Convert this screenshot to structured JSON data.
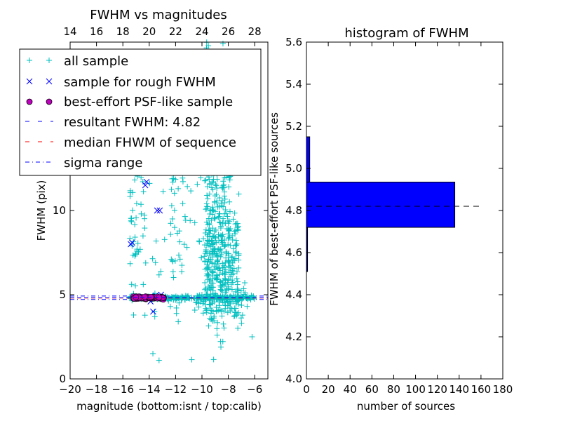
{
  "chart_data": [
    {
      "type": "scatter",
      "title": "FWHM vs magnitudes",
      "xlabel": "magnitude (bottom:isnt / top:calib)",
      "ylabel": "FWHM (pix)",
      "xlim": [
        -20,
        -5
      ],
      "ylim": [
        0,
        20
      ],
      "x_ticks": [
        -20,
        -18,
        -16,
        -14,
        -12,
        -10,
        -8,
        -6
      ],
      "x_tick_labels": [
        "−20",
        "−18",
        "−16",
        "−14",
        "−12",
        "−10",
        "−8",
        "−6"
      ],
      "y_ticks": [
        0,
        5,
        10
      ],
      "y_tick_labels": [
        "0",
        "5",
        "10"
      ],
      "top_axis": {
        "ticks": [
          14,
          16,
          18,
          20,
          22,
          24,
          26,
          28
        ],
        "tick_labels": [
          "14",
          "16",
          "18",
          "20",
          "22",
          "24",
          "26",
          "28"
        ],
        "calib_offset": 34
      },
      "grid": false,
      "legend": {
        "placement": "upper-left",
        "entries": [
          {
            "label": "all sample",
            "marker": "+",
            "color": "#00bfbf"
          },
          {
            "label": "sample for rough FWHM",
            "marker": "x",
            "color": "#0000ff"
          },
          {
            "label": "best-effort PSF-like sample",
            "marker": "o",
            "color": "#bf00bf"
          },
          {
            "label": "resultant FWHM: 4.82",
            "linestyle": "dashed",
            "color": "#0000ff"
          },
          {
            "label": "median FHWM of sequence",
            "linestyle": "dashed",
            "color": "#ff0000"
          },
          {
            "label": "sigma range",
            "linestyle": "dashdot",
            "color": "#0000ff"
          }
        ]
      },
      "hlines": {
        "resultant": 4.82,
        "median": 4.8,
        "sigma_low": 4.72,
        "sigma_high": 4.92
      },
      "series": [
        {
          "name": "all sample",
          "marker": "+",
          "color": "#00bfbf",
          "clusters": [
            {
              "x_range": [
                -15.5,
                -6.0
              ],
              "y_mean": 4.82,
              "y_spread": 0.06,
              "count": 260
            },
            {
              "x_range": [
                -10.5,
                -6.5
              ],
              "y_mean": 4.5,
              "y_spread": 0.5,
              "count": 70
            },
            {
              "x_range": [
                -9.8,
                -7.2
              ],
              "y_mean": 7.0,
              "y_spread": 1.9,
              "count": 300
            },
            {
              "x_range": [
                -9.8,
                -7.8
              ],
              "y_mean": 13.5,
              "y_spread": 3.2,
              "count": 240
            },
            {
              "x_range": [
                -12.5,
                -8.5
              ],
              "y_mean": 10.5,
              "y_spread": 3.5,
              "count": 110
            },
            {
              "x_range": [
                -15.5,
                -12.0
              ],
              "y_mean": 11.0,
              "y_spread": 4.5,
              "count": 70
            },
            {
              "x_range": [
                -15.5,
                -14.9
              ],
              "y_mean": 7.5,
              "y_spread": 1.5,
              "count": 20
            }
          ],
          "points": [
            [
              -6.2,
              2.5
            ],
            [
              -13.6,
              4.0
            ],
            [
              -11.8,
              3.4
            ],
            [
              -12.4,
              4.3
            ],
            [
              -7.0,
              3.3
            ]
          ]
        },
        {
          "name": "sample for rough FWHM",
          "marker": "x",
          "color": "#0000ff",
          "points": [
            [
              -15.3,
              8.1
            ],
            [
              -15.4,
              8.0
            ],
            [
              -14.2,
              11.7
            ],
            [
              -14.3,
              11.5
            ],
            [
              -13.4,
              10.0
            ],
            [
              -13.2,
              10.0
            ],
            [
              -13.7,
              4.0
            ],
            [
              -13.1,
              5.0
            ],
            [
              -14.5,
              4.9
            ],
            [
              -14.0,
              4.75
            ],
            [
              -13.3,
              4.85
            ],
            [
              -14.8,
              4.85
            ],
            [
              -13.9,
              4.6
            ],
            [
              -13.5,
              4.95
            ]
          ]
        },
        {
          "name": "best-effort PSF-like sample",
          "marker": "o",
          "color": "#bf00bf",
          "x_range": [
            -15.2,
            -12.8
          ],
          "y_mean": 4.82,
          "y_spread": 0.04,
          "count": 90
        }
      ]
    },
    {
      "type": "bar",
      "orientation": "horizontal",
      "title": "histogram of FWHM",
      "xlabel": "number of sources",
      "ylabel": "FWHM of best-effort PSF-like sources",
      "xlim": [
        0,
        180
      ],
      "ylim": [
        4.0,
        5.6
      ],
      "x_ticks": [
        0,
        20,
        40,
        60,
        80,
        100,
        120,
        140,
        160,
        180
      ],
      "y_ticks": [
        4.0,
        4.2,
        4.4,
        4.6,
        4.8,
        5.0,
        5.2,
        5.4,
        5.6
      ],
      "y_tick_labels": [
        "4.0",
        "4.2",
        "4.4",
        "4.6",
        "4.8",
        "5.0",
        "5.2",
        "5.4",
        "5.6"
      ],
      "bar_color": "#0000ff",
      "bins": [
        {
          "y0": 4.51,
          "y1": 4.72,
          "count": 1
        },
        {
          "y0": 4.72,
          "y1": 4.935,
          "count": 136
        },
        {
          "y0": 4.935,
          "y1": 5.15,
          "count": 3
        }
      ],
      "hline": {
        "y": 4.82,
        "x_extent": 160,
        "linestyle": "dashed",
        "color": "#000000"
      }
    }
  ]
}
